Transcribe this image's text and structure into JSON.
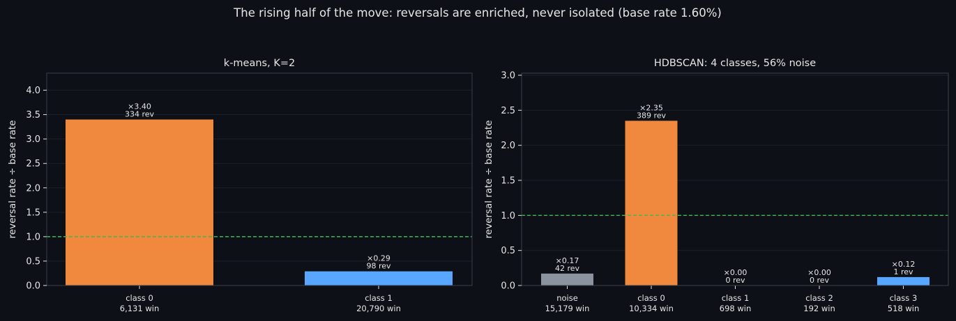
{
  "suptitle": "The rising half of the move: reversals are enriched, never isolated (base rate 1.60%)",
  "colors": {
    "background": "#0d1017",
    "plot_border": "#3a3f4a",
    "grid": "#1b1f28",
    "text": "#e6e6e6",
    "baseline": "#3fb950",
    "orange": "#f0883e",
    "blue": "#58a6ff",
    "gray": "#8b949e"
  },
  "chart_data": [
    {
      "type": "bar",
      "title": "k-means, K=2",
      "ylabel": "reversal rate ÷ base rate",
      "ylim": [
        0,
        4.35
      ],
      "yticks": [
        "0.0",
        "0.5",
        "1.0",
        "1.5",
        "2.0",
        "2.5",
        "3.0",
        "3.5",
        "4.0"
      ],
      "grid": true,
      "reference_line": 1.0,
      "categories": [
        "class 0",
        "class 1"
      ],
      "category_sublabels": [
        "6,131 win",
        "20,790 win"
      ],
      "values": [
        3.4,
        0.29
      ],
      "value_labels": [
        "×3.40",
        "×0.29"
      ],
      "count_labels": [
        "334 rev",
        "98 rev"
      ],
      "bar_colors": [
        "#f0883e",
        "#58a6ff"
      ]
    },
    {
      "type": "bar",
      "title": "HDBSCAN: 4 classes, 56% noise",
      "ylabel": "reversal rate ÷ base rate",
      "ylim": [
        0,
        3.03
      ],
      "yticks": [
        "0.0",
        "0.5",
        "1.0",
        "1.5",
        "2.0",
        "2.5",
        "3.0"
      ],
      "grid": true,
      "reference_line": 1.0,
      "categories": [
        "noise",
        "class 0",
        "class 1",
        "class 2",
        "class 3"
      ],
      "category_sublabels": [
        "15,179 win",
        "10,334 win",
        "698 win",
        "192 win",
        "518 win"
      ],
      "values": [
        0.17,
        2.35,
        0.0,
        0.0,
        0.12
      ],
      "value_labels": [
        "×0.17",
        "×2.35",
        "×0.00",
        "×0.00",
        "×0.12"
      ],
      "count_labels": [
        "42 rev",
        "389 rev",
        "0 rev",
        "0 rev",
        "1 rev"
      ],
      "bar_colors": [
        "#8b949e",
        "#f0883e",
        "#f0883e",
        "#f0883e",
        "#58a6ff"
      ]
    }
  ]
}
